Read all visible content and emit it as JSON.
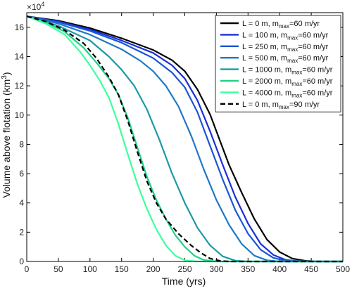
{
  "chart_data": {
    "type": "line",
    "xlabel": "Time (yrs)",
    "ylabel_main": "Volume above flotation (km",
    "ylabel_sup": "3",
    "ylabel_close": ")",
    "y_multiplier_base": "×10",
    "y_multiplier_exp": "4",
    "xlim": [
      0,
      500
    ],
    "ylim": [
      0,
      17
    ],
    "x_ticks": [
      0,
      50,
      100,
      150,
      200,
      250,
      300,
      350,
      400,
      450,
      500
    ],
    "y_ticks": [
      0,
      2,
      4,
      6,
      8,
      10,
      12,
      14,
      16
    ],
    "grid": false,
    "legend_position": "top-right",
    "series": [
      {
        "legend_parts": [
          "L = 0 m, m",
          "max",
          "=60 m/yr"
        ],
        "color": "#000000",
        "dashed": false,
        "points": [
          [
            0,
            16.75
          ],
          [
            50,
            16.45
          ],
          [
            100,
            15.95
          ],
          [
            150,
            15.25
          ],
          [
            200,
            14.45
          ],
          [
            230,
            13.75
          ],
          [
            250,
            13.0
          ],
          [
            270,
            11.75
          ],
          [
            290,
            10.05
          ],
          [
            300,
            8.9
          ],
          [
            320,
            6.6
          ],
          [
            340,
            4.7
          ],
          [
            360,
            2.9
          ],
          [
            380,
            1.5
          ],
          [
            400,
            0.65
          ],
          [
            420,
            0.2
          ],
          [
            440,
            0.05
          ],
          [
            460,
            0.0
          ],
          [
            500,
            0.0
          ]
        ]
      },
      {
        "legend_parts": [
          "L = 100 m, m",
          "max",
          "=60 m/yr"
        ],
        "color": "#1a2fd6",
        "dashed": false,
        "points": [
          [
            0,
            16.75
          ],
          [
            50,
            16.4
          ],
          [
            100,
            15.85
          ],
          [
            150,
            15.1
          ],
          [
            200,
            14.25
          ],
          [
            230,
            13.4
          ],
          [
            250,
            12.5
          ],
          [
            270,
            11.0
          ],
          [
            290,
            8.9
          ],
          [
            310,
            6.6
          ],
          [
            330,
            4.4
          ],
          [
            350,
            2.6
          ],
          [
            370,
            1.2
          ],
          [
            390,
            0.45
          ],
          [
            410,
            0.1
          ],
          [
            430,
            0.02
          ],
          [
            460,
            0.0
          ],
          [
            500,
            0.0
          ]
        ]
      },
      {
        "legend_parts": [
          "L = 250 m, m",
          "max",
          "=60 m/yr"
        ],
        "color": "#1a55d6",
        "dashed": false,
        "points": [
          [
            0,
            16.75
          ],
          [
            50,
            16.35
          ],
          [
            100,
            15.75
          ],
          [
            150,
            14.95
          ],
          [
            200,
            13.9
          ],
          [
            230,
            12.9
          ],
          [
            250,
            11.9
          ],
          [
            270,
            10.2
          ],
          [
            290,
            7.9
          ],
          [
            310,
            5.6
          ],
          [
            330,
            3.5
          ],
          [
            350,
            1.9
          ],
          [
            370,
            0.8
          ],
          [
            390,
            0.25
          ],
          [
            410,
            0.05
          ],
          [
            440,
            0.0
          ],
          [
            500,
            0.0
          ]
        ]
      },
      {
        "legend_parts": [
          "L = 500 m, m",
          "max",
          "=60 m/yr"
        ],
        "color": "#1f78c8",
        "dashed": false,
        "points": [
          [
            0,
            16.75
          ],
          [
            50,
            16.25
          ],
          [
            100,
            15.5
          ],
          [
            150,
            14.5
          ],
          [
            180,
            13.7
          ],
          [
            200,
            13.0
          ],
          [
            220,
            12.0
          ],
          [
            240,
            10.6
          ],
          [
            260,
            8.6
          ],
          [
            280,
            6.3
          ],
          [
            300,
            4.2
          ],
          [
            320,
            2.5
          ],
          [
            340,
            1.2
          ],
          [
            360,
            0.4
          ],
          [
            380,
            0.08
          ],
          [
            400,
            0.0
          ],
          [
            500,
            0.0
          ]
        ]
      },
      {
        "legend_parts": [
          "L = 1000 m, m",
          "max",
          "=60 m/yr"
        ],
        "color": "#1a9aa8",
        "dashed": false,
        "points": [
          [
            0,
            16.75
          ],
          [
            50,
            16.1
          ],
          [
            100,
            15.1
          ],
          [
            130,
            14.0
          ],
          [
            150,
            13.1
          ],
          [
            170,
            12.0
          ],
          [
            190,
            10.4
          ],
          [
            210,
            8.3
          ],
          [
            230,
            6.0
          ],
          [
            250,
            4.0
          ],
          [
            270,
            2.3
          ],
          [
            290,
            1.1
          ],
          [
            310,
            0.35
          ],
          [
            330,
            0.06
          ],
          [
            350,
            0.0
          ],
          [
            500,
            0.0
          ]
        ]
      },
      {
        "legend_parts": [
          "L = 2000 m, m",
          "max",
          "=60 m/yr"
        ],
        "color": "#22d08a",
        "dashed": false,
        "points": [
          [
            0,
            16.75
          ],
          [
            30,
            16.35
          ],
          [
            60,
            15.7
          ],
          [
            90,
            14.6
          ],
          [
            110,
            13.6
          ],
          [
            130,
            12.5
          ],
          [
            145,
            11.4
          ],
          [
            160,
            9.8
          ],
          [
            175,
            7.8
          ],
          [
            190,
            5.8
          ],
          [
            205,
            4.2
          ],
          [
            220,
            2.9
          ],
          [
            235,
            1.8
          ],
          [
            250,
            1.0
          ],
          [
            265,
            0.4
          ],
          [
            280,
            0.1
          ],
          [
            300,
            0.0
          ],
          [
            500,
            0.0
          ]
        ]
      },
      {
        "legend_parts": [
          "L = 4000 m, m",
          "max",
          "=60 m/yr"
        ],
        "color": "#3dff9e",
        "dashed": false,
        "points": [
          [
            0,
            16.75
          ],
          [
            30,
            16.25
          ],
          [
            60,
            15.5
          ],
          [
            85,
            14.3
          ],
          [
            100,
            13.4
          ],
          [
            115,
            12.4
          ],
          [
            130,
            11.2
          ],
          [
            145,
            9.4
          ],
          [
            160,
            7.3
          ],
          [
            175,
            5.3
          ],
          [
            190,
            3.6
          ],
          [
            205,
            2.2
          ],
          [
            220,
            1.1
          ],
          [
            235,
            0.4
          ],
          [
            250,
            0.08
          ],
          [
            270,
            0.0
          ],
          [
            500,
            0.0
          ]
        ]
      },
      {
        "legend_parts": [
          "L = 0 m, m",
          "max",
          "=90 m/yr"
        ],
        "color": "#000000",
        "dashed": true,
        "points": [
          [
            0,
            16.75
          ],
          [
            30,
            16.4
          ],
          [
            60,
            15.8
          ],
          [
            90,
            14.9
          ],
          [
            110,
            13.9
          ],
          [
            130,
            12.6
          ],
          [
            145,
            11.4
          ],
          [
            160,
            9.6
          ],
          [
            175,
            7.5
          ],
          [
            190,
            5.5
          ],
          [
            205,
            4.0
          ],
          [
            220,
            2.9
          ],
          [
            240,
            1.9
          ],
          [
            260,
            1.1
          ],
          [
            275,
            0.6
          ],
          [
            290,
            0.2
          ],
          [
            305,
            0.05
          ],
          [
            320,
            0.0
          ],
          [
            500,
            0.0
          ]
        ]
      }
    ]
  }
}
